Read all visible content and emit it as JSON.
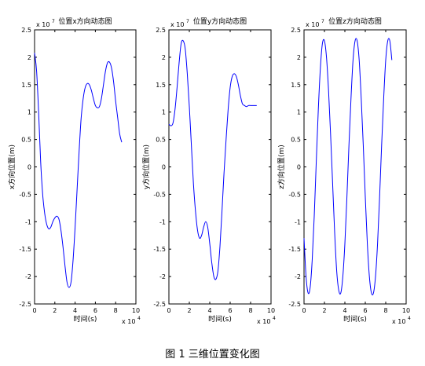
{
  "figure": {
    "caption": "图 1  三维位置变化图"
  },
  "style": {
    "line_color": "#0000ff",
    "axis_color": "#000000"
  },
  "chart_data": [
    {
      "type": "line",
      "title": "位置x方向动态图",
      "xlabel": "时间(s)",
      "ylabel": "x方向位置(m)",
      "xlim": [
        0,
        100000
      ],
      "ylim": [
        -25000000,
        25000000
      ],
      "x_ticks": [
        "0",
        "2",
        "4",
        "6",
        "8",
        "10"
      ],
      "y_ticks": [
        "2.5",
        "2",
        "1.5",
        "1",
        "0.5",
        "0",
        "-0.5",
        "-1",
        "-1.5",
        "-2",
        "-2.5"
      ],
      "x_exponent": "x 10",
      "x_exponent_power": "4",
      "y_exponent": "x 10",
      "y_exponent_power": "7",
      "x": [
        0,
        2000,
        4000,
        6000,
        8000,
        10000,
        12000,
        14000,
        16000,
        18000,
        20000,
        22000,
        24000,
        26000,
        28000,
        30000,
        32000,
        34000,
        36000,
        38000,
        40000,
        42000,
        44000,
        46000,
        48000,
        50000,
        52000,
        54000,
        56000,
        58000,
        60000,
        62000,
        64000,
        66000,
        68000,
        70000,
        72000,
        74000,
        76000,
        78000,
        80000,
        82000,
        84000,
        86000
      ],
      "y": [
        20800000,
        17500000,
        10000000,
        1000000,
        -5000000,
        -8500000,
        -10500000,
        -11300000,
        -11000000,
        -10000000,
        -9300000,
        -9000000,
        -9500000,
        -11500000,
        -14500000,
        -18000000,
        -21000000,
        -22000000,
        -21000000,
        -17000000,
        -11000000,
        -4000000,
        3000000,
        9000000,
        12500000,
        14500000,
        15200000,
        15000000,
        14000000,
        12500000,
        11200000,
        10800000,
        11000000,
        12500000,
        15000000,
        17500000,
        19000000,
        19100000,
        18000000,
        15500000,
        12000000,
        9000000,
        6000000,
        4500000
      ]
    },
    {
      "type": "line",
      "title": "位置y方向动态图",
      "xlabel": "时间(s)",
      "ylabel": "y方向位置(m)",
      "xlim": [
        0,
        100000
      ],
      "ylim": [
        -25000000,
        25000000
      ],
      "x_ticks": [
        "0",
        "2",
        "4",
        "6",
        "8",
        "10"
      ],
      "y_ticks": [
        "2.5",
        "2",
        "1.5",
        "1",
        "0.5",
        "0",
        "-0.5",
        "-1",
        "-1.5",
        "-2",
        "-2.5"
      ],
      "x_exponent": "x 10",
      "x_exponent_power": "4",
      "y_exponent": "x 10",
      "y_exponent_power": "7",
      "x": [
        0,
        2000,
        4000,
        6000,
        8000,
        10000,
        12000,
        14000,
        16000,
        18000,
        20000,
        22000,
        24000,
        26000,
        28000,
        30000,
        32000,
        34000,
        36000,
        38000,
        40000,
        42000,
        44000,
        46000,
        48000,
        50000,
        52000,
        54000,
        56000,
        58000,
        60000,
        62000,
        64000,
        66000,
        68000,
        70000,
        72000,
        74000,
        76000,
        78000,
        80000,
        82000,
        84000,
        86000
      ],
      "y": [
        7800000,
        7500000,
        8000000,
        10500000,
        14500000,
        19000000,
        22500000,
        23000000,
        21500000,
        17000000,
        11000000,
        4000000,
        -3000000,
        -8000000,
        -11500000,
        -13000000,
        -12500000,
        -11000000,
        -10000000,
        -11000000,
        -14000000,
        -17500000,
        -20000000,
        -20500000,
        -19000000,
        -14500000,
        -8000000,
        -1000000,
        5000000,
        10500000,
        14500000,
        16500000,
        17000000,
        16500000,
        15000000,
        13000000,
        11500000,
        11200000,
        11000000,
        11200000,
        11200000,
        11200000,
        11200000,
        11200000
      ]
    },
    {
      "type": "line",
      "title": "位置z方向动态图",
      "xlabel": "时间(s)",
      "ylabel": "z方向位置(m)",
      "xlim": [
        0,
        100000
      ],
      "ylim": [
        -25000000,
        25000000
      ],
      "x_ticks": [
        "0",
        "2",
        "4",
        "6",
        "8",
        "10"
      ],
      "y_ticks": [
        "2.5",
        "2",
        "1.5",
        "1",
        "0.5",
        "0",
        "-0.5",
        "-1",
        "-1.5",
        "-2",
        "-2.5"
      ],
      "x_exponent": "x 10",
      "x_exponent_power": "4",
      "y_exponent": "x 10",
      "y_exponent_power": "7",
      "x": [
        0,
        2000,
        4000,
        6000,
        8000,
        10000,
        12000,
        14000,
        16000,
        18000,
        20000,
        22000,
        24000,
        26000,
        28000,
        30000,
        32000,
        34000,
        36000,
        38000,
        40000,
        42000,
        44000,
        46000,
        48000,
        50000,
        52000,
        54000,
        56000,
        58000,
        60000,
        62000,
        64000,
        66000,
        68000,
        70000,
        72000,
        74000,
        76000,
        78000,
        80000,
        82000,
        84000,
        86000
      ],
      "y": [
        -13000000,
        -20000000,
        -23000000,
        -22000000,
        -17000000,
        -9000000,
        1000000,
        10500000,
        18000000,
        22500000,
        23000000,
        20000000,
        14000000,
        6000000,
        -3000000,
        -12000000,
        -19000000,
        -22500000,
        -23000000,
        -20000000,
        -14000000,
        -5500000,
        4000000,
        12500000,
        19500000,
        23000000,
        23000000,
        19500000,
        12500000,
        4000000,
        -5500000,
        -14000000,
        -20000000,
        -23000000,
        -23000000,
        -20000000,
        -14000000,
        -5500000,
        4000000,
        12500000,
        19500000,
        23000000,
        23000000,
        19500000
      ]
    }
  ]
}
